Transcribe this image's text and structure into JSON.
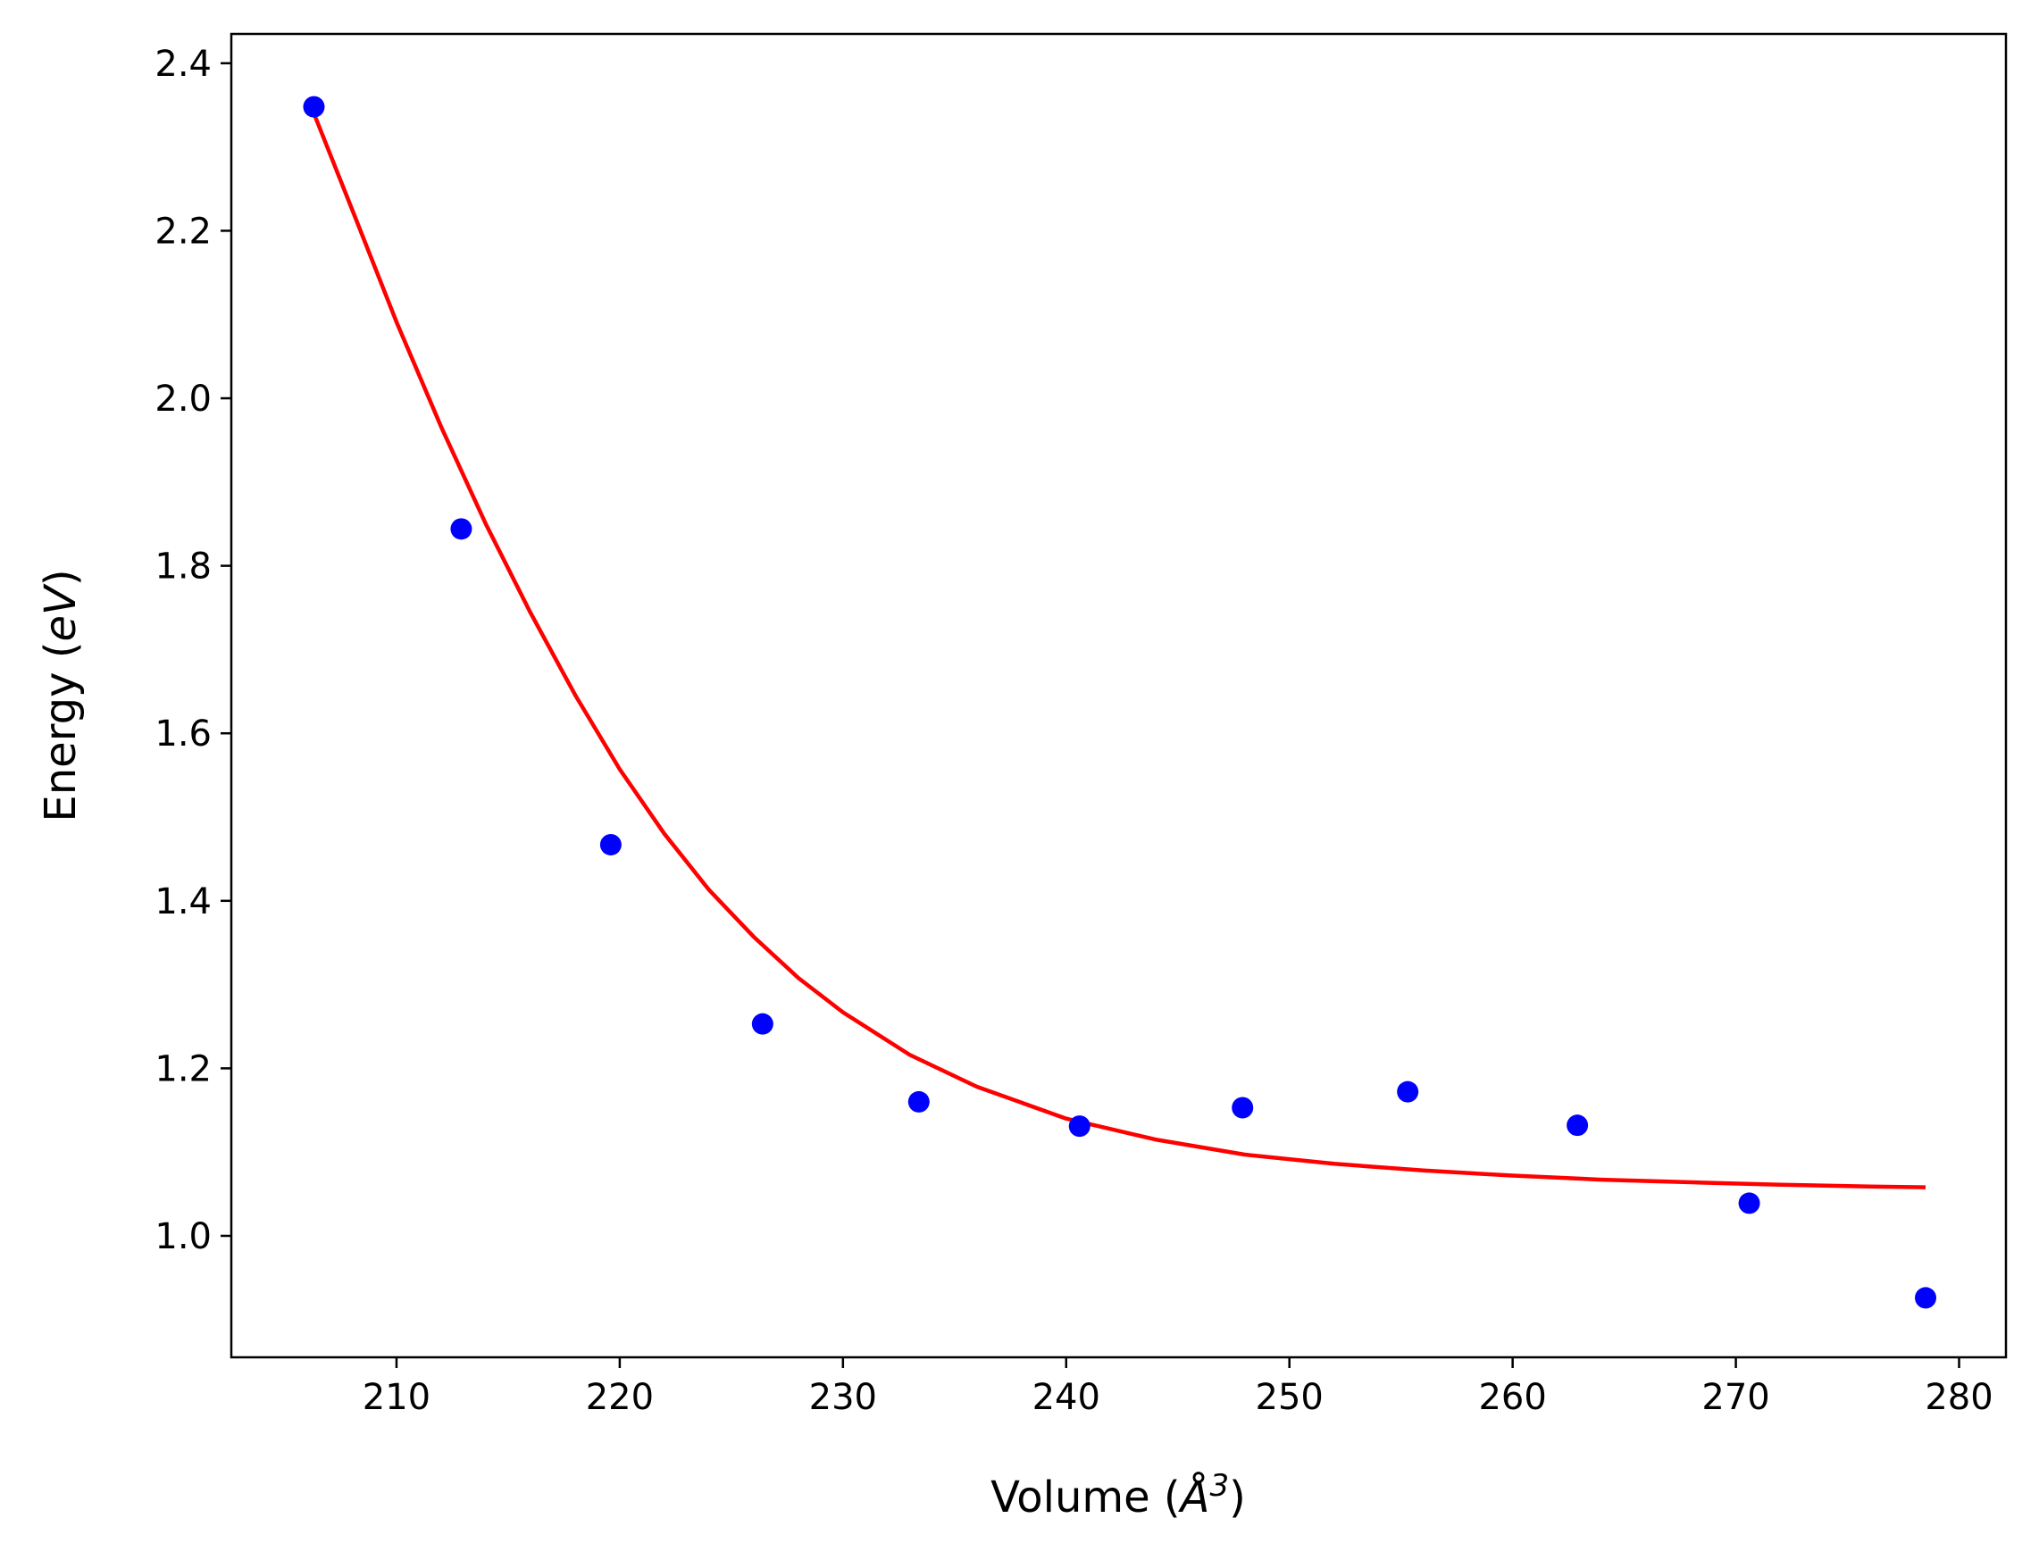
{
  "chart_data": {
    "type": "scatter",
    "xlabel_prefix": "Volume (",
    "xlabel_symbol": "Å",
    "xlabel_sup": "3",
    "xlabel_suffix": ")",
    "ylabel_prefix": "Energy (",
    "ylabel_unit": "eV",
    "ylabel_suffix": ")",
    "xlim": [
      202.6,
      282.1
    ],
    "ylim": [
      0.855,
      2.435
    ],
    "xticks": [
      210,
      220,
      230,
      240,
      250,
      260,
      270,
      280
    ],
    "xtick_labels": [
      "210",
      "220",
      "230",
      "240",
      "250",
      "260",
      "270",
      "280"
    ],
    "yticks": [
      1.0,
      1.2,
      1.4,
      1.6,
      1.8,
      2.0,
      2.2,
      2.4
    ],
    "ytick_labels": [
      "1.0",
      "1.2",
      "1.4",
      "1.6",
      "1.8",
      "2.0",
      "2.2",
      "2.4"
    ],
    "grid": false,
    "series": [
      {
        "kind": "points",
        "color": "#0000ff",
        "x": [
          206.3,
          212.9,
          219.6,
          226.4,
          233.4,
          240.6,
          247.9,
          255.3,
          262.9,
          270.6,
          278.5
        ],
        "y": [
          2.348,
          1.844,
          1.467,
          1.253,
          1.16,
          1.131,
          1.153,
          1.172,
          1.132,
          1.039,
          0.926
        ]
      },
      {
        "kind": "fit-curve",
        "color": "#ff0000",
        "x": [
          206.3,
          208.0,
          210.0,
          212.0,
          214.0,
          216.0,
          218.0,
          220.0,
          222.0,
          224.0,
          226.0,
          228.0,
          230.0,
          233.0,
          236.0,
          240.0,
          244.0,
          248.0,
          252.0,
          256.0,
          260.0,
          264.0,
          268.0,
          272.0,
          276.0,
          278.5
        ],
        "y": [
          2.34,
          2.226,
          2.091,
          1.966,
          1.85,
          1.744,
          1.646,
          1.557,
          1.48,
          1.413,
          1.357,
          1.308,
          1.267,
          1.216,
          1.178,
          1.14,
          1.115,
          1.097,
          1.086,
          1.078,
          1.072,
          1.067,
          1.064,
          1.061,
          1.059,
          1.058
        ]
      }
    ]
  }
}
